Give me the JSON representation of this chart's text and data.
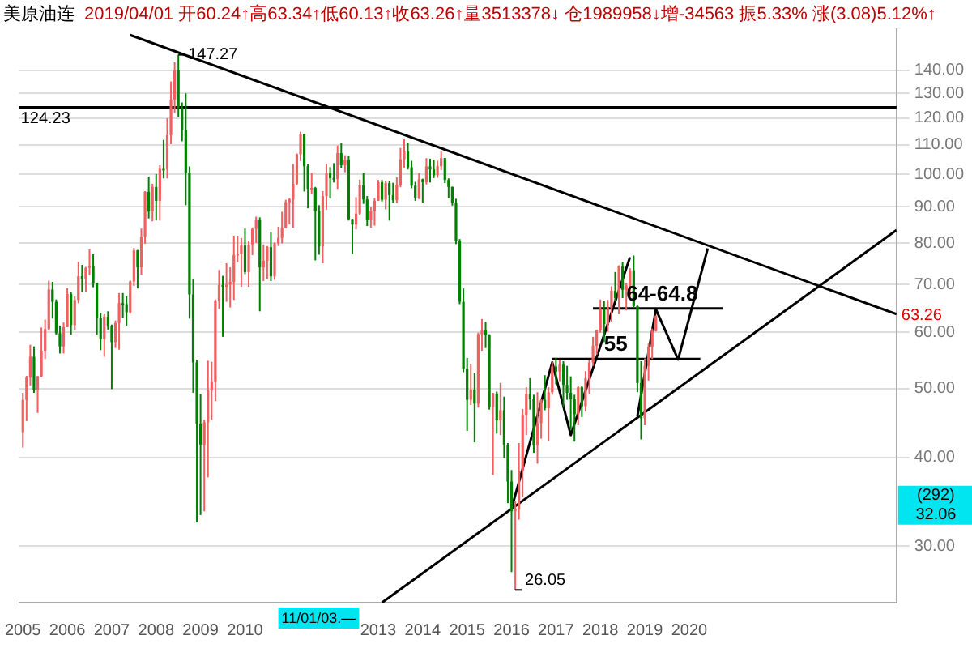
{
  "chart_data": {
    "type": "candlestick",
    "title": "美原油连",
    "subtitle": "2019/04/01 开60.24↑高63.34↑低60.13↑收63.26↑量3513378↓ 仓1989958↓增-34563 振5.33% 涨(3.08)5.12%↑",
    "xlim": [
      "2004-12",
      "2024-09"
    ],
    "xticks": [
      {
        "value": "2005",
        "label": "2005"
      },
      {
        "value": "2006",
        "label": "2006"
      },
      {
        "value": "2007",
        "label": "2007"
      },
      {
        "value": "2008",
        "label": "2008"
      },
      {
        "value": "2009",
        "label": "2009"
      },
      {
        "value": "2010",
        "label": "2010"
      },
      {
        "value": "2013",
        "label": "2013"
      },
      {
        "value": "2014",
        "label": "2014"
      },
      {
        "value": "2015",
        "label": "2015"
      },
      {
        "value": "2016",
        "label": "2016"
      },
      {
        "value": "2017",
        "label": "2017"
      },
      {
        "value": "2018",
        "label": "2018"
      },
      {
        "value": "2019",
        "label": "2019"
      },
      {
        "value": "2020",
        "label": "2020"
      }
    ],
    "ylim": [
      25,
      160
    ],
    "log": "y",
    "yticks": [
      {
        "value": 30,
        "label": "30.00"
      },
      {
        "value": 40,
        "label": "40.00"
      },
      {
        "value": 50,
        "label": "50.00"
      },
      {
        "value": 60,
        "label": "60.00"
      },
      {
        "value": 70,
        "label": "70.00"
      },
      {
        "value": 80,
        "label": "80.00"
      },
      {
        "value": 90,
        "label": "90.00"
      },
      {
        "value": 100,
        "label": "100.00"
      },
      {
        "value": 110,
        "label": "110.00"
      },
      {
        "value": 120,
        "label": "120.00"
      },
      {
        "value": 130,
        "label": "130.00"
      },
      {
        "value": 140,
        "label": "140.00"
      }
    ],
    "grid": "y",
    "legend": false,
    "ref_lines": [
      {
        "axis": "y",
        "value": 124.23,
        "label": "124.23",
        "color": "#000000"
      }
    ],
    "series": [
      {
        "color": "#f06060",
        "x": [
          "2005-01",
          "2005-02",
          "2005-03",
          "2005-05",
          "2005-06",
          "2005-07",
          "2005-08",
          "2005-12",
          "2006-01",
          "2006-03",
          "2006-04",
          "2006-06",
          "2006-07",
          "2006-11",
          "2007-02",
          "2007-03",
          "2007-06",
          "2007-07",
          "2007-09",
          "2007-10",
          "2007-12",
          "2008-02",
          "2008-04",
          "2008-05",
          "2008-06",
          "2009-02",
          "2009-03",
          "2009-04",
          "2009-05",
          "2009-06",
          "2009-08",
          "2009-09",
          "2009-10",
          "2009-11",
          "2009-12",
          "2010-02",
          "2010-03",
          "2010-04",
          "2010-06",
          "2010-07",
          "2010-09",
          "2010-10",
          "2010-11",
          "2010-12",
          "2011-01",
          "2011-02",
          "2011-03",
          "2011-04",
          "2011-07",
          "2011-10",
          "2011-11",
          "2012-02",
          "2012-04",
          "2012-07",
          "2012-08",
          "2012-11",
          "2012-12",
          "2013-01",
          "2013-03",
          "2013-06",
          "2013-07",
          "2013-08",
          "2013-12",
          "2014-02",
          "2014-05",
          "2014-06",
          "2015-02",
          "2015-04",
          "2015-05",
          "2015-08",
          "2015-10",
          "2016-02",
          "2016-03",
          "2016-04",
          "2016-05",
          "2016-08",
          "2016-09",
          "2016-11",
          "2016-12",
          "2017-02",
          "2017-07",
          "2017-09",
          "2017-10",
          "2017-11",
          "2017-12",
          "2018-01",
          "2018-03",
          "2018-04",
          "2018-06",
          "2018-08",
          "2018-09",
          "2019-01",
          "2019-02",
          "2019-03",
          "2019-04"
        ],
        "ohlc": [
          [
            43.4,
            49.3,
            41.3,
            48.2
          ],
          [
            48.2,
            52.1,
            45.0,
            51.8
          ],
          [
            51.8,
            57.6,
            50.5,
            55.4
          ],
          [
            49.7,
            52.1,
            46.2,
            52.0
          ],
          [
            52.0,
            60.9,
            51.9,
            56.5
          ],
          [
            56.5,
            62.5,
            55.0,
            60.6
          ],
          [
            60.6,
            70.9,
            60.3,
            68.9
          ],
          [
            57.3,
            61.9,
            56.0,
            61.0
          ],
          [
            61.0,
            69.2,
            61.0,
            67.9
          ],
          [
            61.4,
            67.4,
            60.3,
            66.6
          ],
          [
            66.6,
            75.4,
            65.9,
            71.9
          ],
          [
            71.3,
            74.1,
            68.4,
            73.9
          ],
          [
            73.9,
            78.4,
            72.1,
            74.4
          ],
          [
            58.7,
            63.6,
            55.4,
            63.1
          ],
          [
            58.1,
            62.3,
            57.0,
            61.8
          ],
          [
            61.8,
            68.1,
            56.7,
            65.9
          ],
          [
            64.0,
            70.9,
            63.7,
            70.7
          ],
          [
            70.7,
            78.8,
            69.7,
            78.2
          ],
          [
            74.0,
            83.9,
            72.3,
            81.7
          ],
          [
            81.7,
            94.7,
            79.9,
            94.5
          ],
          [
            88.7,
            97.0,
            85.9,
            96.0
          ],
          [
            91.8,
            103.0,
            86.1,
            101.8
          ],
          [
            101.6,
            119.9,
            98.7,
            113.5
          ],
          [
            113.5,
            135.1,
            110.3,
            127.4
          ],
          [
            127.4,
            143.7,
            122.0,
            140.0
          ],
          [
            41.7,
            45.2,
            33.6,
            44.8
          ],
          [
            44.8,
            54.7,
            37.5,
            49.7
          ],
          [
            49.7,
            54.5,
            45.2,
            51.1
          ],
          [
            51.1,
            66.7,
            48.0,
            66.3
          ],
          [
            66.3,
            73.4,
            64.7,
            69.9
          ],
          [
            69.5,
            75.0,
            66.2,
            70.0
          ],
          [
            70.0,
            74.0,
            65.0,
            70.6
          ],
          [
            70.6,
            82.0,
            66.6,
            77.0
          ],
          [
            77.0,
            82.0,
            75.2,
            77.3
          ],
          [
            77.3,
            81.4,
            69.5,
            79.4
          ],
          [
            72.9,
            80.5,
            69.5,
            79.7
          ],
          [
            79.7,
            84.2,
            77.0,
            83.8
          ],
          [
            83.8,
            87.2,
            80.1,
            86.2
          ],
          [
            74.0,
            79.7,
            70.8,
            75.6
          ],
          [
            75.6,
            79.3,
            71.3,
            79.0
          ],
          [
            71.9,
            80.2,
            71.1,
            80.0
          ],
          [
            80.0,
            84.4,
            79.3,
            81.4
          ],
          [
            81.4,
            88.6,
            80.0,
            84.1
          ],
          [
            84.1,
            92.1,
            84.0,
            91.4
          ],
          [
            91.4,
            92.6,
            85.1,
            92.2
          ],
          [
            92.2,
            103.4,
            84.1,
            97.0
          ],
          [
            97.0,
            107.0,
            96.5,
            106.7
          ],
          [
            106.7,
            114.8,
            104.4,
            113.9
          ],
          [
            95.4,
            100.6,
            93.7,
            95.7
          ],
          [
            79.2,
            94.7,
            75.0,
            93.2
          ],
          [
            93.2,
            103.4,
            89.2,
            100.4
          ],
          [
            98.5,
            109.8,
            95.4,
            107.1
          ],
          [
            103.0,
            106.4,
            100.7,
            104.9
          ],
          [
            85.0,
            92.9,
            83.7,
            88.1
          ],
          [
            88.1,
            98.3,
            87.6,
            96.5
          ],
          [
            86.2,
            89.9,
            84.1,
            88.9
          ],
          [
            88.9,
            92.6,
            84.7,
            91.8
          ],
          [
            91.8,
            98.2,
            91.8,
            97.5
          ],
          [
            92.1,
            97.8,
            89.3,
            97.2
          ],
          [
            92.0,
            99.0,
            91.1,
            96.6
          ],
          [
            96.6,
            108.9,
            95.9,
            105.0
          ],
          [
            105.0,
            112.2,
            102.2,
            107.7
          ],
          [
            92.7,
            100.4,
            92.3,
            98.4
          ],
          [
            97.5,
            105.4,
            96.8,
            102.6
          ],
          [
            99.7,
            104.5,
            98.9,
            102.7
          ],
          [
            102.7,
            107.7,
            101.4,
            105.4
          ],
          [
            48.2,
            54.2,
            47.4,
            49.8
          ],
          [
            47.6,
            59.9,
            47.0,
            59.6
          ],
          [
            59.6,
            62.6,
            56.5,
            60.3
          ],
          [
            47.1,
            49.3,
            37.8,
            49.2
          ],
          [
            45.1,
            50.9,
            43.0,
            46.6
          ],
          [
            33.6,
            34.7,
            26.05,
            33.8
          ],
          [
            33.8,
            41.9,
            32.7,
            38.3
          ],
          [
            38.3,
            46.8,
            35.2,
            45.9
          ],
          [
            45.9,
            50.2,
            43.0,
            49.1
          ],
          [
            41.6,
            49.4,
            39.2,
            44.7
          ],
          [
            44.7,
            48.3,
            42.5,
            48.2
          ],
          [
            46.9,
            50.2,
            42.2,
            49.4
          ],
          [
            49.4,
            54.5,
            49.0,
            53.7
          ],
          [
            52.8,
            54.9,
            51.2,
            54.0
          ],
          [
            46.0,
            50.4,
            44.4,
            50.2
          ],
          [
            47.2,
            52.9,
            46.4,
            51.7
          ],
          [
            51.7,
            54.8,
            49.1,
            54.4
          ],
          [
            54.4,
            59.1,
            53.8,
            57.4
          ],
          [
            57.4,
            60.5,
            55.8,
            60.4
          ],
          [
            60.4,
            66.7,
            59.9,
            64.7
          ],
          [
            61.6,
            66.6,
            60.1,
            64.9
          ],
          [
            64.9,
            69.6,
            62.1,
            68.6
          ],
          [
            67.0,
            74.5,
            63.6,
            74.2
          ],
          [
            68.8,
            70.4,
            64.4,
            69.8
          ],
          [
            69.8,
            73.8,
            67.1,
            73.3
          ],
          [
            45.4,
            55.1,
            44.4,
            53.8
          ],
          [
            53.8,
            57.8,
            51.3,
            57.2
          ],
          [
            57.2,
            60.7,
            55.0,
            60.1
          ],
          [
            60.24,
            63.34,
            60.13,
            63.26
          ]
        ]
      },
      {
        "color": "#008000",
        "x": [
          "2005-04",
          "2005-09",
          "2005-10",
          "2005-11",
          "2006-02",
          "2006-05",
          "2006-08",
          "2006-09",
          "2006-10",
          "2006-12",
          "2007-01",
          "2007-04",
          "2007-05",
          "2007-08",
          "2007-11",
          "2008-01",
          "2008-03",
          "2008-07",
          "2008-08",
          "2008-09",
          "2008-10",
          "2008-11",
          "2008-12",
          "2009-01",
          "2009-07",
          "2010-01",
          "2010-05",
          "2010-08",
          "2011-05",
          "2011-06",
          "2011-08",
          "2011-09",
          "2011-12",
          "2012-01",
          "2012-03",
          "2012-05",
          "2012-06",
          "2012-09",
          "2012-10",
          "2013-02",
          "2013-04",
          "2013-05",
          "2013-09",
          "2013-10",
          "2013-11",
          "2014-01",
          "2014-03",
          "2014-04",
          "2014-07",
          "2014-08",
          "2014-09",
          "2014-10",
          "2014-11",
          "2014-12",
          "2015-01",
          "2015-03",
          "2015-06",
          "2015-07",
          "2015-09",
          "2015-11",
          "2015-12",
          "2016-01",
          "2016-06",
          "2016-07",
          "2016-10",
          "2017-01",
          "2017-03",
          "2017-04",
          "2017-05",
          "2017-06",
          "2017-08",
          "2018-02",
          "2018-05",
          "2018-07",
          "2018-10",
          "2018-11",
          "2018-12"
        ],
        "ohlc": [
          [
            55.4,
            57.3,
            49.3,
            49.7
          ],
          [
            68.9,
            70.6,
            62.7,
            66.2
          ],
          [
            66.2,
            66.7,
            59.5,
            59.8
          ],
          [
            59.8,
            61.3,
            56.0,
            57.3
          ],
          [
            67.9,
            68.4,
            59.5,
            61.4
          ],
          [
            71.9,
            74.6,
            68.3,
            71.3
          ],
          [
            74.4,
            77.2,
            69.4,
            70.3
          ],
          [
            70.3,
            70.4,
            59.5,
            62.9
          ],
          [
            62.9,
            63.9,
            56.6,
            58.7
          ],
          [
            63.1,
            64.2,
            60.5,
            61.1
          ],
          [
            61.1,
            61.5,
            49.9,
            58.1
          ],
          [
            65.9,
            68.1,
            62.9,
            65.7
          ],
          [
            65.7,
            67.4,
            61.3,
            64.0
          ],
          [
            78.2,
            78.3,
            69.1,
            74.0
          ],
          [
            94.5,
            99.3,
            86.7,
            88.7
          ],
          [
            96.0,
            100.1,
            86.1,
            91.8
          ],
          [
            101.8,
            111.8,
            98.7,
            101.6
          ],
          [
            140.0,
            147.27,
            120.4,
            124.1
          ],
          [
            124.1,
            126.2,
            111.3,
            115.5
          ],
          [
            115.5,
            130.0,
            90.5,
            100.6
          ],
          [
            100.6,
            102.6,
            62.7,
            67.8
          ],
          [
            67.8,
            71.3,
            49.3,
            54.4
          ],
          [
            54.4,
            54.9,
            32.4,
            44.6
          ],
          [
            44.6,
            49.1,
            33.2,
            41.7
          ],
          [
            69.9,
            72.0,
            59.1,
            69.5
          ],
          [
            79.4,
            83.9,
            72.4,
            72.9
          ],
          [
            86.2,
            87.0,
            64.2,
            74.0
          ],
          [
            79.0,
            83.0,
            70.8,
            71.9
          ],
          [
            113.9,
            114.0,
            94.6,
            102.7
          ],
          [
            102.7,
            103.4,
            89.6,
            95.4
          ],
          [
            95.7,
            96.0,
            75.7,
            88.8
          ],
          [
            88.8,
            90.5,
            77.1,
            79.2
          ],
          [
            100.4,
            102.4,
            92.5,
            98.8
          ],
          [
            98.8,
            103.7,
            97.4,
            98.5
          ],
          [
            107.1,
            110.6,
            102.0,
            103.0
          ],
          [
            104.9,
            106.2,
            86.1,
            86.5
          ],
          [
            86.5,
            86.6,
            77.3,
            85.0
          ],
          [
            96.5,
            100.4,
            90.9,
            92.2
          ],
          [
            92.2,
            93.2,
            84.6,
            86.2
          ],
          [
            97.5,
            98.2,
            91.6,
            92.1
          ],
          [
            97.2,
            97.8,
            86.1,
            93.5
          ],
          [
            93.5,
            97.3,
            91.2,
            92.0
          ],
          [
            107.7,
            110.7,
            101.6,
            102.3
          ],
          [
            102.3,
            104.5,
            95.6,
            96.4
          ],
          [
            96.4,
            97.6,
            91.8,
            92.7
          ],
          [
            98.4,
            98.6,
            91.2,
            97.5
          ],
          [
            102.6,
            105.2,
            97.4,
            101.6
          ],
          [
            101.6,
            104.9,
            98.8,
            99.7
          ],
          [
            105.4,
            105.4,
            97.2,
            98.2
          ],
          [
            98.2,
            98.7,
            92.5,
            96.0
          ],
          [
            96.0,
            96.1,
            90.4,
            91.2
          ],
          [
            91.2,
            92.4,
            79.8,
            80.5
          ],
          [
            80.5,
            81.1,
            65.7,
            66.2
          ],
          [
            66.2,
            69.1,
            52.7,
            53.3
          ],
          [
            53.3,
            55.2,
            43.6,
            48.2
          ],
          [
            49.8,
            52.5,
            42.0,
            47.6
          ],
          [
            60.3,
            62.0,
            57.0,
            59.5
          ],
          [
            59.5,
            59.6,
            46.7,
            47.1
          ],
          [
            49.2,
            49.5,
            43.2,
            45.1
          ],
          [
            46.6,
            48.7,
            39.9,
            41.7
          ],
          [
            41.7,
            41.9,
            34.5,
            37.0
          ],
          [
            37.0,
            38.4,
            27.6,
            33.6
          ],
          [
            49.1,
            51.7,
            46.7,
            48.3
          ],
          [
            48.3,
            49.0,
            40.6,
            41.6
          ],
          [
            48.2,
            52.2,
            46.6,
            46.9
          ],
          [
            53.7,
            55.2,
            50.7,
            52.8
          ],
          [
            54.0,
            54.6,
            47.1,
            50.6
          ],
          [
            50.6,
            53.8,
            48.2,
            49.3
          ],
          [
            49.3,
            52.0,
            43.8,
            48.3
          ],
          [
            48.3,
            49.0,
            42.1,
            46.0
          ],
          [
            50.2,
            50.4,
            45.6,
            47.2
          ],
          [
            64.7,
            66.3,
            58.1,
            61.6
          ],
          [
            68.6,
            72.9,
            66.3,
            67.0
          ],
          [
            74.2,
            75.3,
            67.0,
            68.8
          ],
          [
            73.3,
            76.9,
            64.9,
            65.3
          ],
          [
            65.3,
            65.4,
            49.4,
            50.9
          ],
          [
            50.9,
            54.6,
            42.4,
            45.4
          ]
        ]
      },
      {
        "type": "line",
        "color": "#000000",
        "marker": "none",
        "line_style": "solid",
        "x": [
          "2007-06",
          "2024-09"
        ],
        "values": [
          157,
          63.6
        ]
      },
      {
        "type": "line",
        "color": "#000000",
        "marker": "none",
        "line_style": "solid",
        "x": [
          "2013-02",
          "2024-09"
        ],
        "values": [
          25,
          83.5
        ]
      },
      {
        "type": "line",
        "color": "#000000",
        "marker": "none",
        "line_style": "solid",
        "x": [
          "2016-01",
          "2016-12",
          "2017-05",
          "2018-09"
        ],
        "values": [
          33.9,
          54.4,
          43.0,
          76.5
        ]
      },
      {
        "type": "line",
        "color": "#000000",
        "marker": "none",
        "line_style": "solid",
        "x": [
          "2018-11",
          "2019-04",
          "2019-10",
          "2020-06"
        ],
        "values": [
          45.7,
          64.6,
          54.9,
          78.7
        ]
      },
      {
        "type": "line",
        "color": "#000000",
        "marker": "none",
        "line_style": "solid",
        "x": [
          "2016-12",
          "2020-04"
        ],
        "values": [
          55,
          55
        ]
      },
      {
        "type": "line",
        "color": "#000000",
        "marker": "none",
        "line_style": "solid",
        "x": [
          "2017-11",
          "2020-10"
        ],
        "values": [
          64.8,
          64.8
        ]
      }
    ],
    "annotations": [
      {
        "text": "147.27",
        "x": "2008-07",
        "y": 147.27
      },
      {
        "text": "26.05",
        "x": "2016-02",
        "y": 26.05
      },
      {
        "text": "64-64.8",
        "x": "2018-08",
        "y": 64.8
      },
      {
        "text": "55",
        "x": "2018-02",
        "y": 55
      },
      "63.26",
      "(292)",
      "32.06",
      "11/01/03.—"
    ]
  }
}
